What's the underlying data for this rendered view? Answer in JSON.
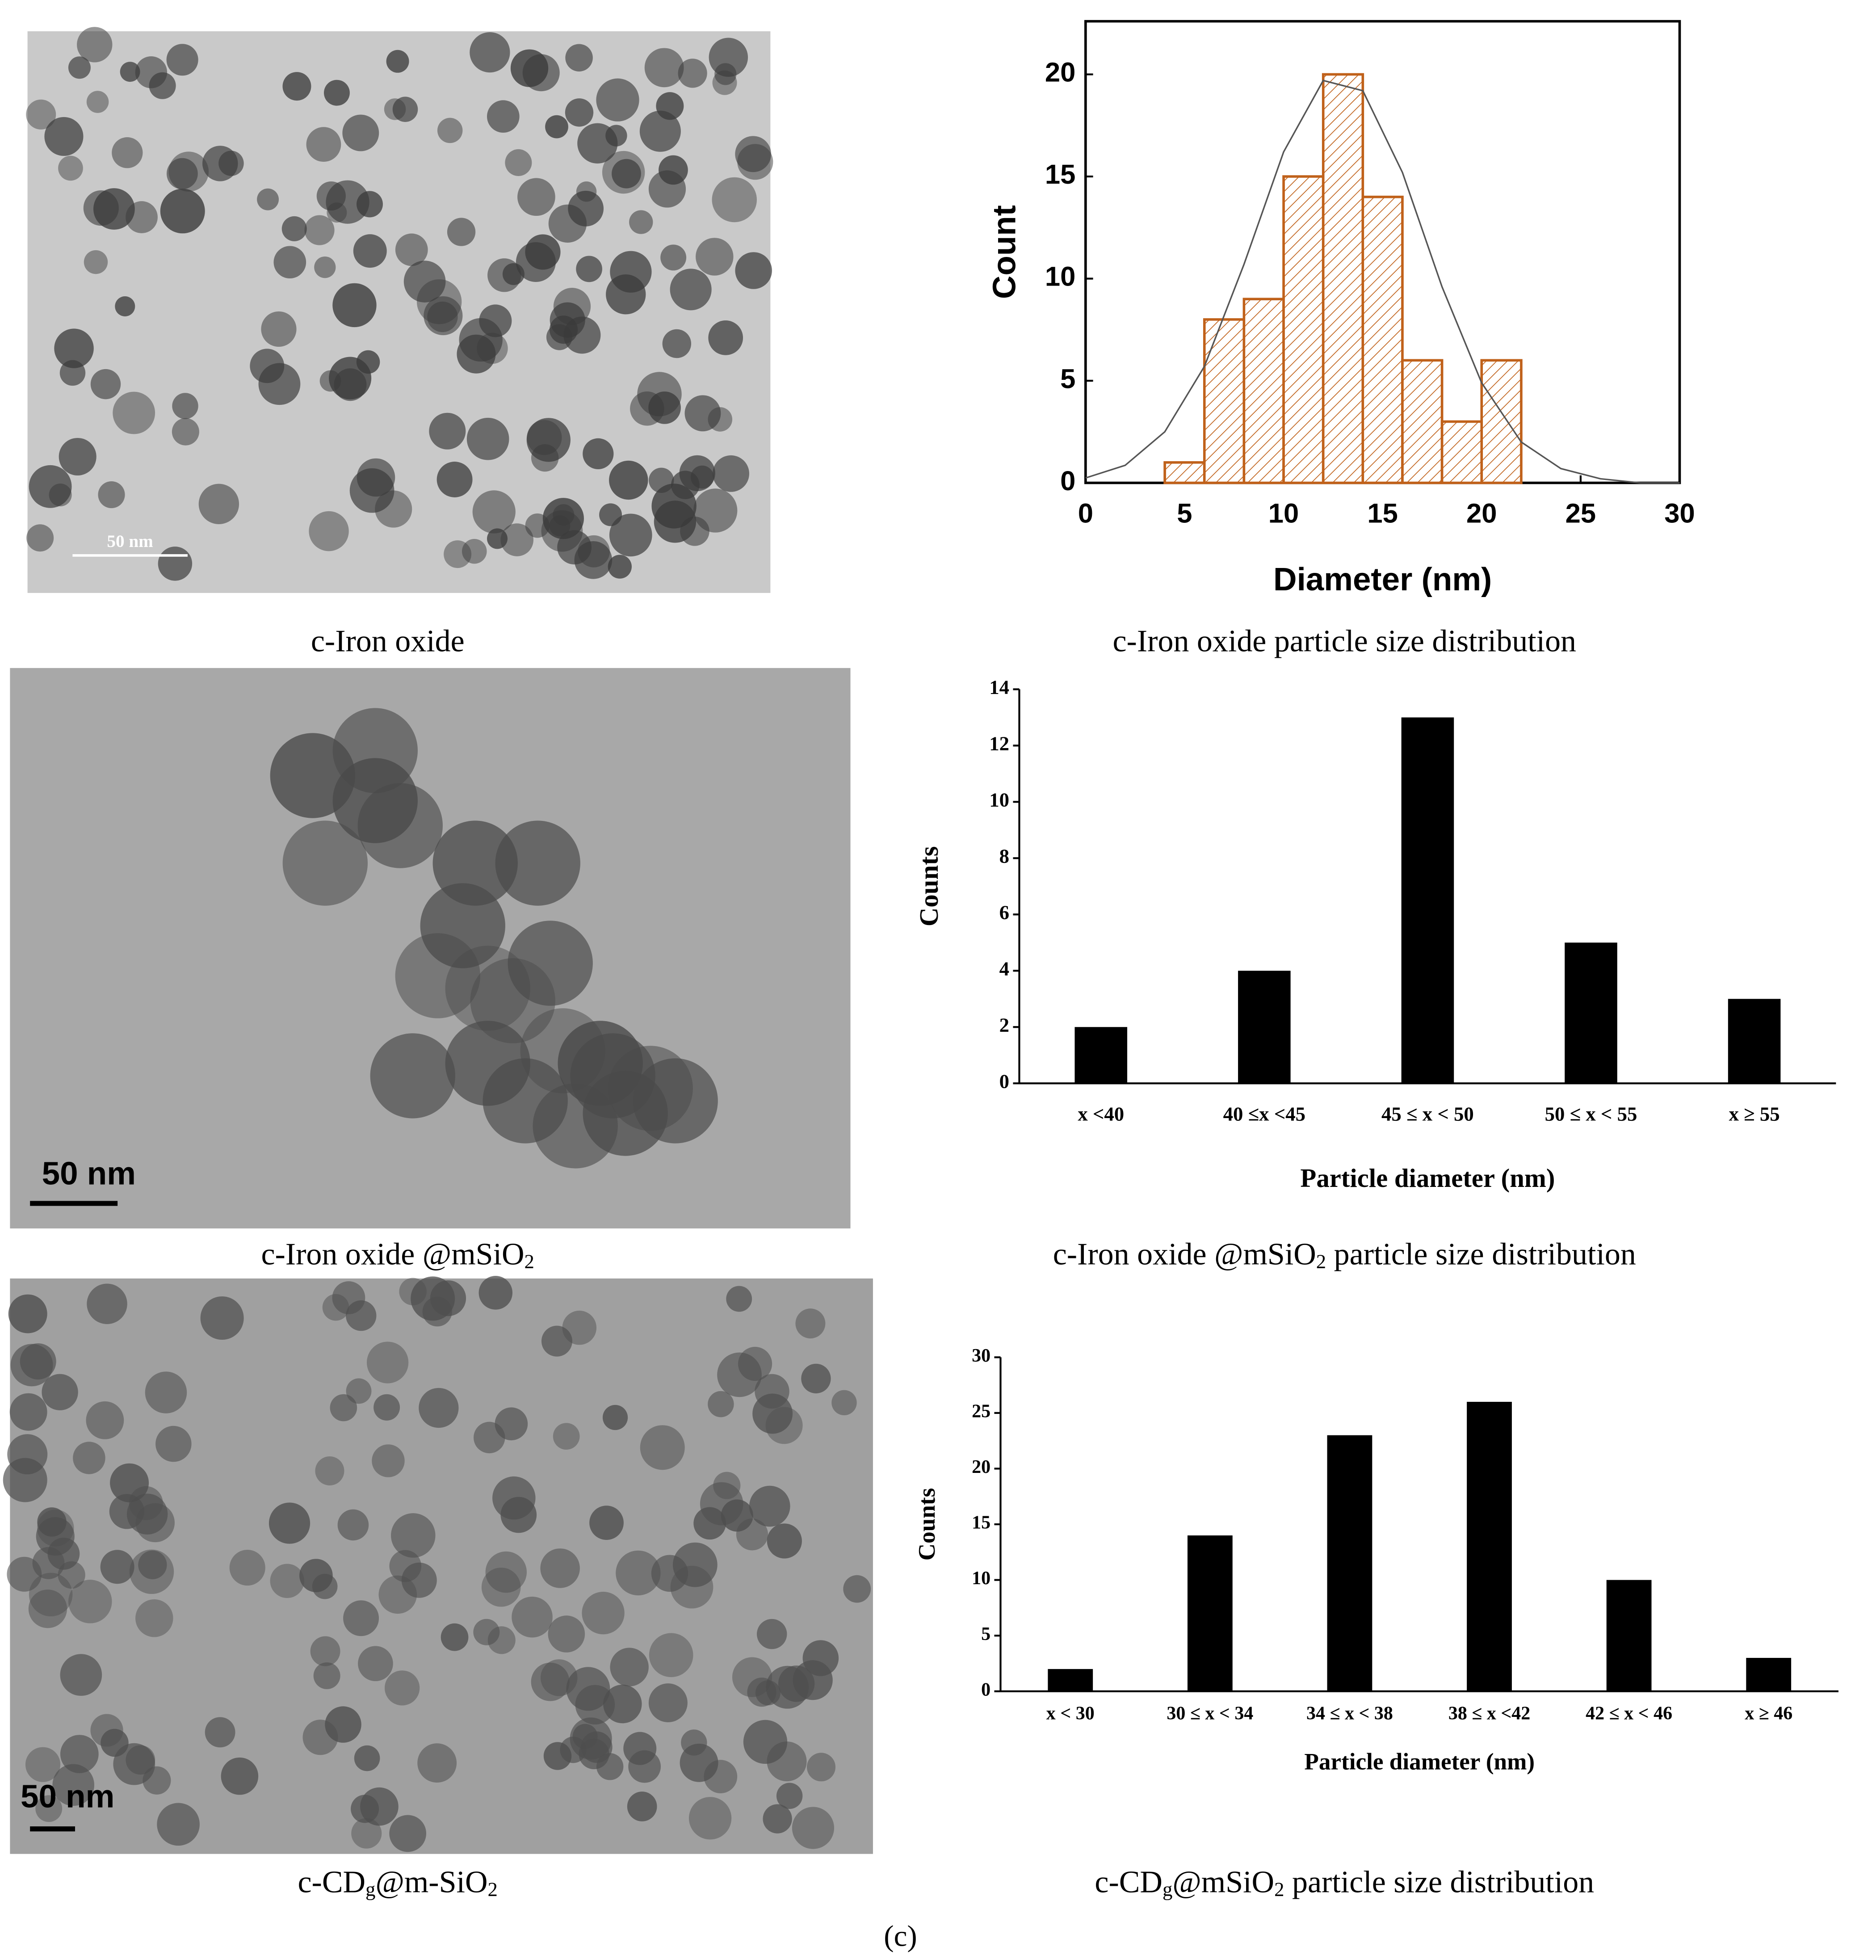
{
  "chart_data": [
    {
      "type": "histogram",
      "x_label": "Diameter (nm)",
      "y_label": "Count",
      "bins": [
        4,
        6,
        8,
        10,
        12,
        14,
        16,
        18,
        20,
        22
      ],
      "values": [
        1,
        8,
        9,
        15,
        20,
        14,
        6,
        3,
        6
      ],
      "color": "#c0611a",
      "xlim": [
        0,
        30
      ],
      "xticks": [
        0,
        5,
        10,
        15,
        20,
        25,
        30
      ],
      "ylim": [
        0,
        22.6
      ],
      "yticks": [
        0,
        5,
        10,
        15,
        20
      ],
      "fit": {
        "x": [
          0,
          2,
          4,
          6,
          8,
          10,
          12,
          14,
          16,
          18,
          20,
          22,
          24,
          26,
          28,
          30
        ],
        "values": [
          0.24,
          0.86,
          2.5,
          5.7,
          10.7,
          16.2,
          19.7,
          19.2,
          15.2,
          9.6,
          4.9,
          2.0,
          0.7,
          0.2,
          0.0,
          0.0
        ],
        "color": "#555555"
      }
    },
    {
      "type": "bar",
      "x_label": "Particle diameter (nm)",
      "y_label": "Counts",
      "categories": [
        "x <40",
        "40 ≤x <45",
        "45 ≤ x < 50",
        "50 ≤ x < 55",
        "x ≥ 55"
      ],
      "values": [
        2,
        4,
        13,
        5,
        3
      ],
      "color": "#000000",
      "ylim": [
        0,
        14
      ],
      "yticks": [
        0,
        2,
        4,
        6,
        8,
        10,
        12,
        14
      ]
    },
    {
      "type": "bar",
      "x_label": "Particle diameter (nm)",
      "y_label": "Counts",
      "categories": [
        "x < 30",
        "30 ≤ x < 34",
        "34 ≤ x < 38",
        "38 ≤ x <42",
        "42 ≤ x < 46",
        "x ≥ 46"
      ],
      "values": [
        2,
        14,
        23,
        26,
        10,
        3
      ],
      "color": "#000000",
      "ylim": [
        0,
        30
      ],
      "yticks": [
        0,
        5,
        10,
        15,
        20,
        25,
        30
      ]
    }
  ],
  "images": [
    {
      "scale_bar": "50 nm"
    },
    {
      "scale_bar": "50 nm"
    },
    {
      "scale_bar": "50 nm"
    }
  ],
  "captions": [
    {
      "parts": [
        "c-Iron oxide"
      ]
    },
    {
      "parts": [
        "c-Iron oxide particle size distribution"
      ]
    },
    {
      "parts": [
        "c-Iron oxide @mSiO",
        "2"
      ]
    },
    {
      "parts": [
        "c-Iron oxide @mSiO",
        "2",
        " particle size distribution"
      ]
    },
    {
      "parts": [
        "c-CD",
        "g",
        "@m-SiO",
        "2"
      ]
    },
    {
      "parts": [
        "c-CD",
        "g",
        "@mSiO",
        "2",
        " particle size distribution"
      ]
    }
  ],
  "figure_label": "(c)"
}
